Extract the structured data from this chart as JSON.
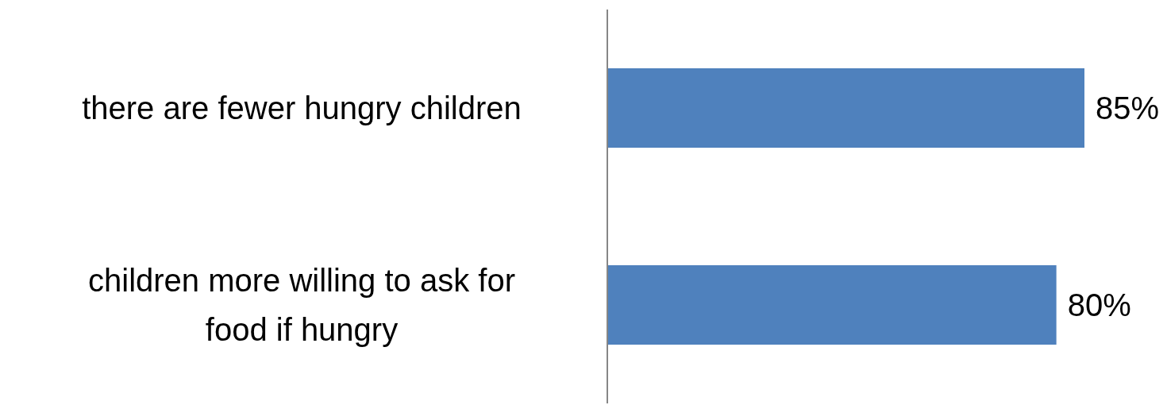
{
  "chart_data": {
    "type": "bar",
    "orientation": "horizontal",
    "categories": [
      "there are fewer hungry children",
      "children more willing to ask for food if hungry"
    ],
    "series": [
      {
        "color": "#4f81bd",
        "values": [
          85,
          80
        ],
        "value_labels": [
          "85%",
          "80%"
        ]
      }
    ],
    "tick_labels": "y",
    "grid": false,
    "legend": false
  }
}
